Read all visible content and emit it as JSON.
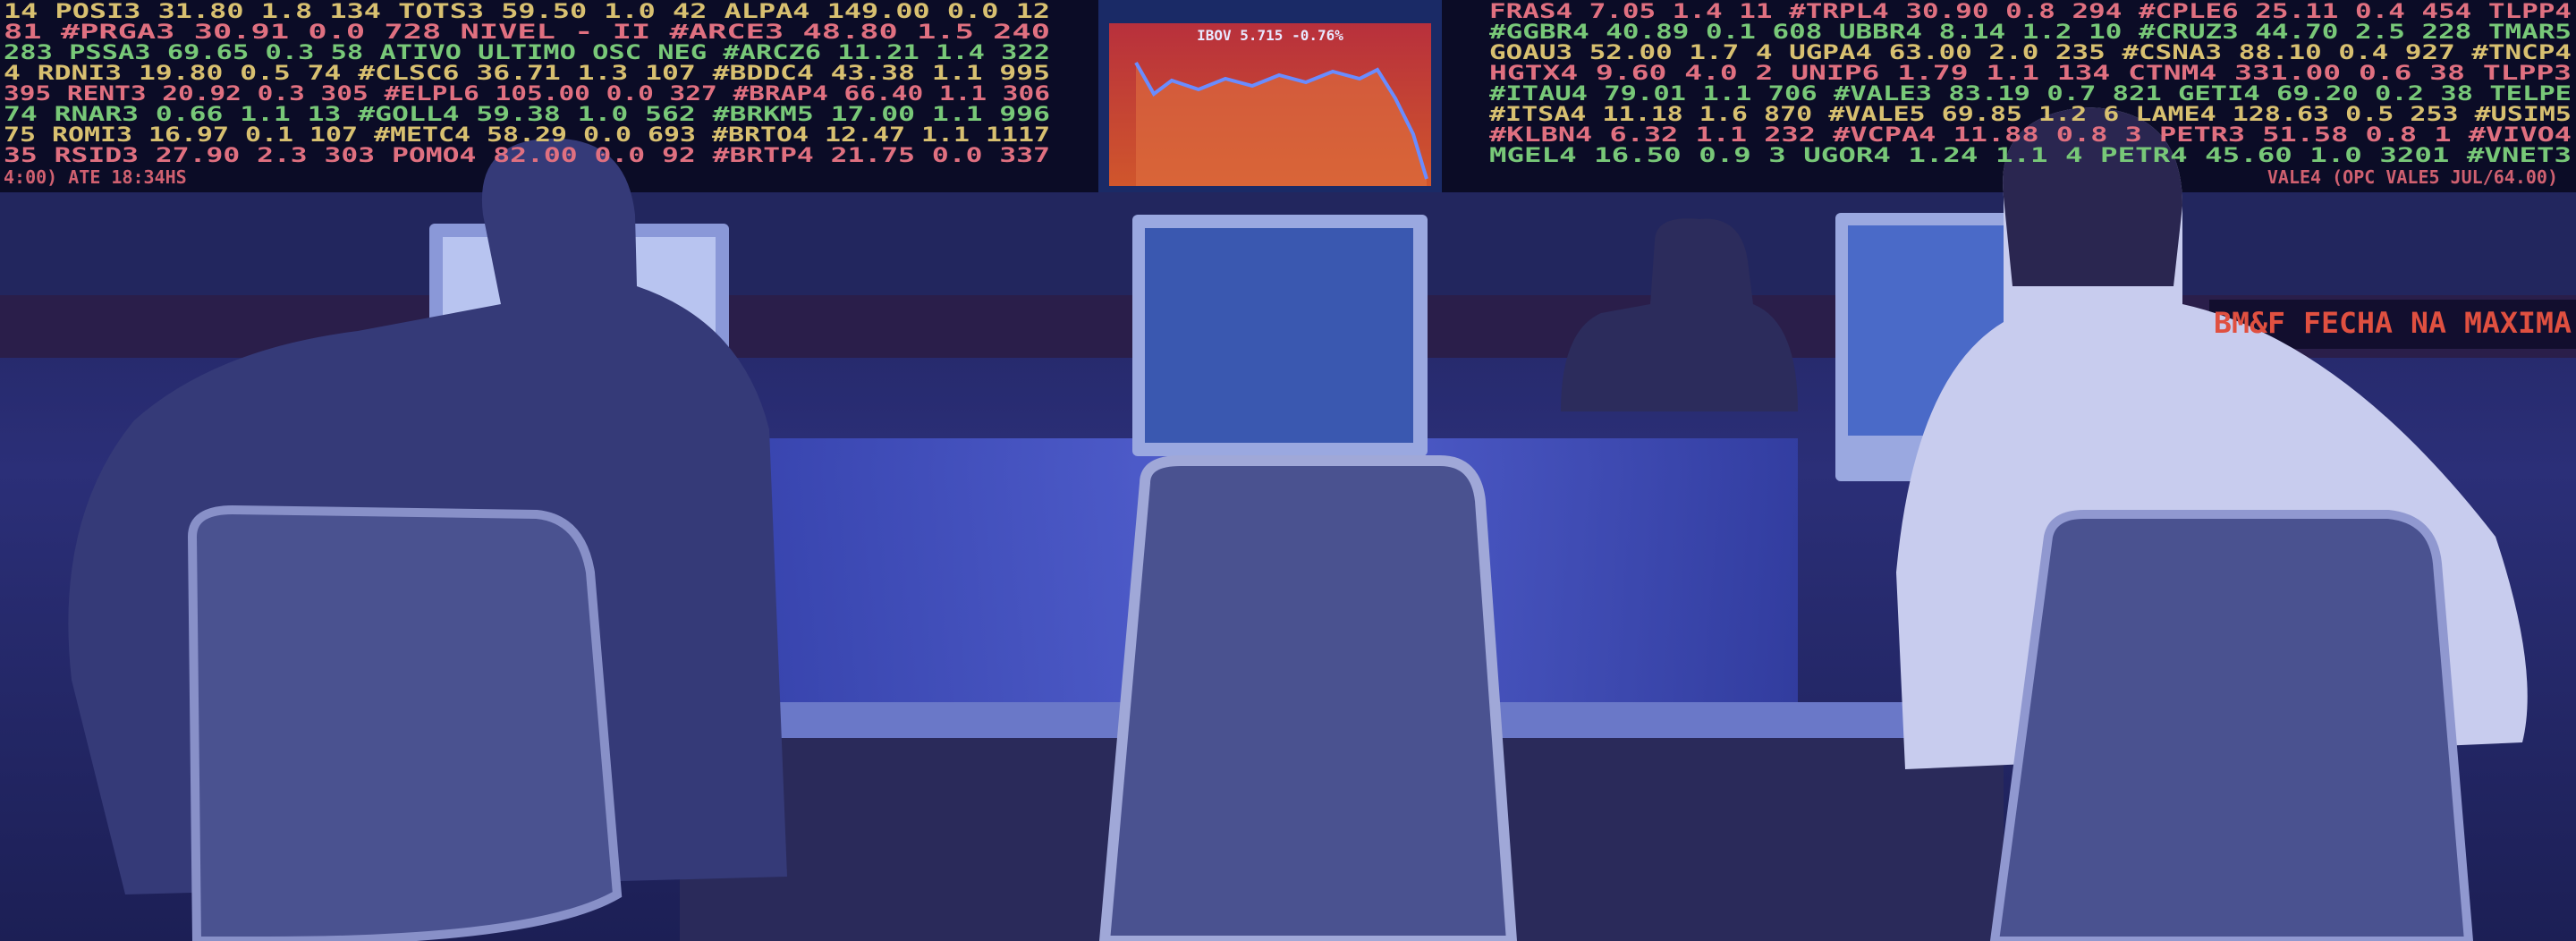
{
  "left_board": {
    "rows": [
      "14 POSI3 31.80 1.8 134 TOTS3 59.50 1.0 42 ALPA4 149.00 0.0 12",
      "81 #PRGA3 30.91 0.0 728 NIVEL - II #ARCE3 48.80 1.5 240",
      "283 PSSA3 69.65 0.3 58 ATIVO ULTIMO OSC NEG #ARCZ6 11.21 1.4 322",
      "4 RDNI3 19.80 0.5 74 #CLSC6 36.71 1.3 107 #BDDC4 43.38 1.1 995",
      "395 RENT3 20.92 0.3 305 #ELPL6 105.00 0.0 327 #BRAP4 66.40 1.1 306",
      "74 RNAR3 0.66 1.1 13 #GOLL4 59.38 1.0 562 #BRKM5 17.00 1.1 996",
      "75 ROMI3 16.97 0.1 107 #METC4 58.29 0.0 693 #BRTO4 12.47 1.1 1117",
      "35 RSID3 27.90 2.3 303 POMO4 82.00 0.0 92 #BRTP4 21.75 0.0 337"
    ],
    "footer": "4:00) ATE 18:34HS"
  },
  "chart_screen": {
    "title": "IBOV 5.715 -0.76%"
  },
  "right_board": {
    "rows": [
      "FRAS4 7.05 1.4 11 #TRPL4 30.90 0.8 294 #CPLE6 25.11 0.4 454 TLPP4",
      "#GGBR4 40.89 0.1 608 UBBR4 8.14 1.2 10 #CRUZ3 44.70 2.5 228 TMAR5",
      "GOAU3 52.00 1.7 4 UGPA4 63.00 2.0 235 #CSNA3 88.10 0.4 927 #TNCP4",
      "HGTX4 9.60 4.0 2 UNIP6 1.79 1.1 134 CTNM4 331.00 0.6 38 TLPP3",
      "#ITAU4 79.01 1.1 706 #VALE3 83.19 0.7 821 GETI4 69.20 0.2 38 TELPE",
      "#ITSA4 11.18 1.6 870 #VALE5 69.85 1.2 6 LAME4 128.63 0.5 253 #USIM5",
      "#KLBN4 6.32 1.1 232 #VCPA4 11.88 0.8 3 PETR3 51.58 0.8 1 #VIVO4",
      "MGEL4 16.50 0.9 3 UGOR4 1.24 1.1 4 PETR4 45.60 1.0 3201 #VNET3"
    ],
    "footer": "VALE4 (OPC VALE5 JUL/64.00)"
  },
  "ticker_tape": "BM&F FECHA NA MAXIMA"
}
